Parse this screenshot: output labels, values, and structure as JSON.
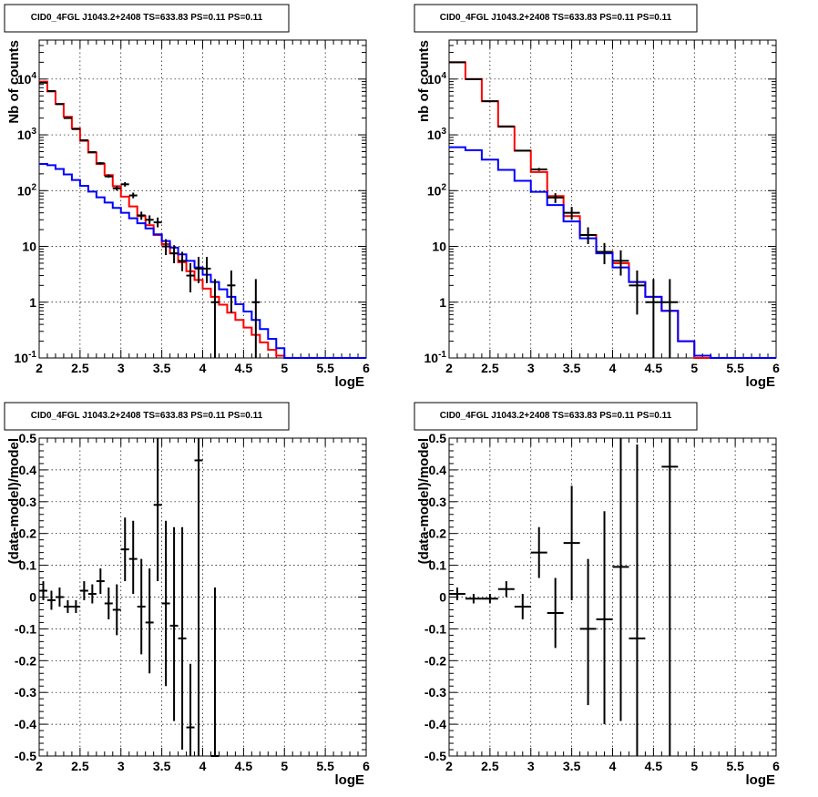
{
  "colors": {
    "data": "#000000",
    "total_model": "#ff0000",
    "component_model": "#0000ff",
    "grid": "#000000"
  },
  "chart_data": [
    {
      "id": "counts-left",
      "type": "step",
      "title": "CID0_4FGL J1043.2+2408 TS=633.83 PS=0.11 PS=0.11",
      "xlabel": "logE",
      "ylabel": "Nb of counts",
      "xlim": [
        2,
        6
      ],
      "ylim": [
        0.1,
        50000
      ],
      "yscale": "log",
      "grid": true,
      "xticks": [
        "2",
        "2.5",
        "3",
        "3.5",
        "4",
        "4.5",
        "5",
        "5.5",
        "6"
      ],
      "yticks": [
        "10^-1",
        "1",
        "10",
        "10^2",
        "10^3",
        "10^4"
      ],
      "bin_width": 0.1,
      "series": [
        {
          "color": "red",
          "x": [
            2.0,
            2.1,
            2.2,
            2.3,
            2.4,
            2.5,
            2.6,
            2.7,
            2.8,
            2.9,
            3.0,
            3.1,
            3.2,
            3.3,
            3.4,
            3.5,
            3.6,
            3.7,
            3.8,
            3.9,
            4.0,
            4.1,
            4.2,
            4.3,
            4.4,
            4.5,
            4.6,
            4.7,
            4.8,
            4.9,
            5.0,
            5.1,
            5.2,
            5.3,
            5.4,
            5.5,
            5.6,
            5.7,
            5.8,
            5.9
          ],
          "values": [
            9000,
            6000,
            3600,
            2100,
            1300,
            780,
            480,
            300,
            190,
            120,
            78,
            52,
            35,
            24,
            16,
            11,
            7.5,
            5.2,
            3.6,
            2.5,
            1.75,
            1.25,
            0.9,
            0.65,
            0.48,
            0.35,
            0.26,
            0.19,
            0.14,
            0.11,
            0.1,
            0.1,
            0.1,
            0.1,
            0.1,
            0.1,
            0.1,
            0.1,
            0.1,
            0.1
          ]
        },
        {
          "color": "blue",
          "x": [
            2.0,
            2.1,
            2.2,
            2.3,
            2.4,
            2.5,
            2.6,
            2.7,
            2.8,
            2.9,
            3.0,
            3.1,
            3.2,
            3.3,
            3.4,
            3.5,
            3.6,
            3.7,
            3.8,
            3.9,
            4.0,
            4.1,
            4.2,
            4.3,
            4.4,
            4.5,
            4.6,
            4.7,
            4.8,
            4.9,
            5.0,
            5.1,
            5.2,
            5.3,
            5.4,
            5.5,
            5.6,
            5.7,
            5.8,
            5.9
          ],
          "values": [
            300,
            285,
            245,
            195,
            155,
            122,
            96,
            76,
            61,
            49,
            40,
            32,
            26,
            21,
            16.5,
            12.5,
            9.5,
            7.2,
            5.5,
            4.2,
            3.1,
            2.3,
            1.7,
            1.25,
            0.92,
            0.68,
            0.48,
            0.33,
            0.22,
            0.15,
            0.1,
            0.1,
            0.1,
            0.1,
            0.1,
            0.1,
            0.1,
            0.1,
            0.1,
            0.1
          ]
        }
      ],
      "points": {
        "x": [
          2.05,
          2.15,
          2.25,
          2.35,
          2.45,
          2.55,
          2.65,
          2.75,
          2.85,
          2.95,
          3.05,
          3.15,
          3.25,
          3.35,
          3.45,
          3.55,
          3.65,
          3.75,
          3.85,
          3.95,
          4.05,
          4.15,
          4.35,
          4.65
        ],
        "y": [
          8600,
          6100,
          3550,
          2000,
          1270,
          800,
          490,
          310,
          180,
          110,
          130,
          82,
          36,
          30,
          27,
          10,
          7.5,
          5.5,
          3.0,
          4.0,
          4.0,
          1.0,
          2.0,
          1.0
        ],
        "lo": [
          8400,
          5950,
          3450,
          1950,
          1230,
          770,
          470,
          295,
          170,
          100,
          118,
          73,
          30,
          25,
          22,
          7,
          5,
          3.6,
          1.5,
          2.2,
          2.2,
          0.1,
          0.65,
          0.1
        ],
        "hi": [
          8800,
          6250,
          3650,
          2050,
          1310,
          830,
          510,
          325,
          195,
          120,
          142,
          92,
          42,
          36,
          33,
          13.5,
          10.5,
          8,
          5,
          6.5,
          6.5,
          2.6,
          3.7,
          2.6
        ]
      }
    },
    {
      "id": "counts-right",
      "type": "step",
      "title": "CID0_4FGL J1043.2+2408 TS=633.83 PS=0.11 PS=0.11",
      "xlabel": "logE",
      "ylabel": "nb of counts",
      "xlim": [
        2,
        6
      ],
      "ylim": [
        0.1,
        50000
      ],
      "yscale": "log",
      "grid": true,
      "xticks": [
        "2",
        "2.5",
        "3",
        "3.5",
        "4",
        "4.5",
        "5",
        "5.5",
        "6"
      ],
      "yticks": [
        "10^-1",
        "1",
        "10",
        "10^2",
        "10^3",
        "10^4"
      ],
      "bin_width": 0.2,
      "series": [
        {
          "color": "red",
          "x": [
            2.0,
            2.2,
            2.4,
            2.6,
            2.8,
            3.0,
            3.2,
            3.4,
            3.6,
            3.8,
            4.0,
            4.2,
            4.4,
            4.6,
            4.8,
            5.0,
            5.2,
            5.4,
            5.6,
            5.8
          ],
          "values": [
            20000,
            10000,
            4000,
            1400,
            520,
            215,
            80,
            35,
            16,
            8,
            5,
            2.3,
            1.25,
            0.7,
            0.2,
            0.1,
            0.1,
            0.1,
            0.1,
            0.1
          ]
        },
        {
          "color": "blue",
          "x": [
            2.0,
            2.2,
            2.4,
            2.6,
            2.8,
            3.0,
            3.2,
            3.4,
            3.6,
            3.8,
            4.0,
            4.2,
            4.4,
            4.6,
            4.8,
            5.0,
            5.2,
            5.4,
            5.6,
            5.8
          ],
          "values": [
            600,
            530,
            360,
            235,
            150,
            95,
            55,
            28,
            14,
            7.5,
            4.2,
            2.3,
            1.25,
            0.7,
            0.2,
            0.11,
            0.1,
            0.1,
            0.1,
            0.1
          ]
        }
      ],
      "points": {
        "x": [
          2.1,
          2.3,
          2.5,
          2.7,
          2.9,
          3.1,
          3.3,
          3.5,
          3.7,
          3.9,
          4.1,
          4.3,
          4.5,
          4.7
        ],
        "y": [
          20000,
          9950,
          4000,
          1420,
          520,
          240,
          75,
          40,
          16,
          8,
          5.5,
          2.0,
          1.0,
          1.0
        ],
        "lo": [
          19700,
          9750,
          3940,
          1390,
          505,
          226,
          60,
          30,
          11,
          4.8,
          3,
          0.6,
          0.1,
          0.1
        ],
        "hi": [
          20300,
          10150,
          4060,
          1450,
          535,
          255,
          90,
          51,
          22,
          11.5,
          8.5,
          3.7,
          2.6,
          2.6
        ]
      }
    },
    {
      "id": "residuals-left",
      "type": "errorbar",
      "title": "CID0_4FGL J1043.2+2408 TS=633.83 PS=0.11 PS=0.11",
      "xlabel": "logE",
      "ylabel": "(data-model)/model",
      "xlim": [
        2,
        6
      ],
      "ylim": [
        -0.5,
        0.5
      ],
      "yscale": "linear",
      "grid": true,
      "xticks": [
        "2",
        "2.5",
        "3",
        "3.5",
        "4",
        "4.5",
        "5",
        "5.5",
        "6"
      ],
      "yticks": [
        "-0.5",
        "-0.4",
        "-0.3",
        "-0.2",
        "-0.1",
        "0",
        "0.1",
        "0.2",
        "0.3",
        "0.4",
        "0.5"
      ],
      "bin_width": 0.1,
      "points": {
        "x": [
          2.05,
          2.15,
          2.25,
          2.35,
          2.45,
          2.55,
          2.65,
          2.75,
          2.85,
          2.95,
          3.05,
          3.15,
          3.25,
          3.35,
          3.45,
          3.55,
          3.65,
          3.75,
          3.85,
          3.95,
          4.15
        ],
        "y": [
          0.02,
          -0.01,
          0.0,
          -0.03,
          -0.03,
          0.02,
          0.01,
          0.05,
          -0.02,
          -0.04,
          0.15,
          0.12,
          -0.03,
          -0.08,
          0.29,
          -0.02,
          -0.09,
          -0.13,
          -0.41,
          0.43,
          -0.5
        ],
        "lo": [
          -0.01,
          -0.04,
          -0.03,
          -0.05,
          -0.05,
          -0.01,
          -0.02,
          0.01,
          -0.07,
          -0.12,
          0.05,
          0.01,
          -0.18,
          -0.24,
          0.05,
          -0.28,
          -0.39,
          -0.48,
          -0.5,
          -0.5,
          -0.5
        ],
        "hi": [
          0.05,
          0.02,
          0.03,
          -0.01,
          -0.01,
          0.05,
          0.04,
          0.09,
          0.03,
          0.04,
          0.25,
          0.24,
          0.12,
          0.09,
          0.5,
          0.24,
          0.22,
          0.22,
          -0.21,
          0.5,
          0.03
        ]
      }
    },
    {
      "id": "residuals-right",
      "type": "errorbar",
      "title": "CID0_4FGL J1043.2+2408 TS=633.83 PS=0.11 PS=0.11",
      "xlabel": "logE",
      "ylabel": "(data-model)/model",
      "xlim": [
        2,
        6
      ],
      "ylim": [
        -0.5,
        0.5
      ],
      "yscale": "linear",
      "grid": true,
      "xticks": [
        "2",
        "2.5",
        "3",
        "3.5",
        "4",
        "4.5",
        "5",
        "5.5",
        "6"
      ],
      "yticks": [
        "-0.5",
        "-0.4",
        "-0.3",
        "-0.2",
        "-0.1",
        "0",
        "0.1",
        "0.2",
        "0.3",
        "0.4",
        "0.5"
      ],
      "bin_width": 0.2,
      "points": {
        "x": [
          2.1,
          2.3,
          2.5,
          2.7,
          2.9,
          3.1,
          3.3,
          3.5,
          3.7,
          3.9,
          4.1,
          4.3,
          4.7
        ],
        "y": [
          0.01,
          -0.005,
          -0.005,
          0.025,
          -0.03,
          0.14,
          -0.05,
          0.17,
          -0.1,
          -0.07,
          0.095,
          -0.13,
          0.41
        ],
        "lo": [
          -0.01,
          -0.02,
          -0.02,
          0.0,
          -0.07,
          0.06,
          -0.16,
          -0.01,
          -0.34,
          -0.4,
          -0.39,
          -0.5,
          -0.5
        ],
        "hi": [
          0.03,
          0.01,
          0.01,
          0.05,
          0.01,
          0.22,
          0.06,
          0.35,
          0.12,
          0.27,
          0.5,
          0.48,
          0.5
        ]
      }
    }
  ]
}
